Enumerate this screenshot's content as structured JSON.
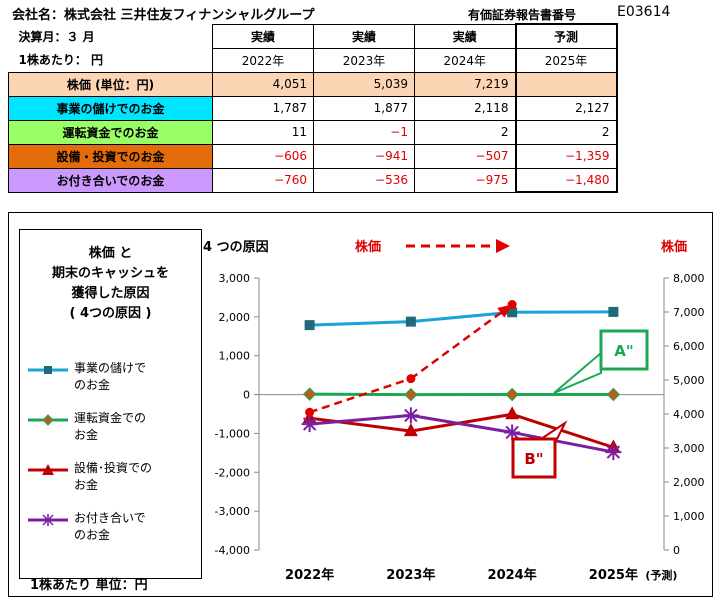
{
  "header": {
    "company_label": "会社名：株式会社 三井住友フィナンシャルグループ",
    "doc_code_label": "有価証券報告書番号",
    "doc_code": "E03614"
  },
  "table": {
    "fiscal_month_label": "決算月：３ 月",
    "per_share_label": "1株あたり： 円",
    "header_types": [
      "実績",
      "実績",
      "実績",
      "予測"
    ],
    "header_years": [
      "2022年",
      "2023年",
      "2024年",
      "2025年"
    ],
    "rows": [
      {
        "label": "株価 (単位：円)",
        "values": [
          "4,051",
          "5,039",
          "7,219",
          ""
        ]
      },
      {
        "label": "事業の儲けでのお金",
        "values": [
          "1,787",
          "1,877",
          "2,118",
          "2,127"
        ]
      },
      {
        "label": "運転資金でのお金",
        "values": [
          "11",
          "−1",
          "2",
          "2"
        ]
      },
      {
        "label": "設備・投資でのお金",
        "values": [
          "−606",
          "−941",
          "−507",
          "−1,359"
        ]
      },
      {
        "label": "お付き合いでのお金",
        "values": [
          "−760",
          "−536",
          "−975",
          "−1,480"
        ]
      }
    ]
  },
  "legend": {
    "title_lines": [
      "株価 と",
      "期末のキャッシュを",
      "獲得した原因",
      "( 4つの原因 )"
    ],
    "items": [
      {
        "line1": "事業の儲けで",
        "line2": "のお金"
      },
      {
        "line1": "運転資金での",
        "line2": "お金"
      },
      {
        "line1": "設備･投資での",
        "line2": "お金"
      },
      {
        "line1": "お付き合いで",
        "line2": "のお金"
      }
    ],
    "unit": "1株あたり 単位：円"
  },
  "chart_data": {
    "type": "line",
    "title": "4 つの原因",
    "price_label": "株価",
    "price_axis_label": "株価",
    "categories": [
      "2022年",
      "2023年",
      "2024年",
      "2025年"
    ],
    "forecast_suffix": "(予測)",
    "y_left": {
      "min": -4000,
      "max": 3000,
      "ticks": [
        "3,000",
        "2,000",
        "1,000",
        "0",
        "-1,000",
        "-2,000",
        "-3,000",
        "-4,000"
      ]
    },
    "y_right": {
      "min": 0,
      "max": 8000,
      "ticks": [
        "8,000",
        "7,000",
        "6,000",
        "5,000",
        "4,000",
        "3,000",
        "2,000",
        "1,000",
        "0"
      ]
    },
    "series": [
      {
        "name": "事業の儲けでのお金",
        "axis": "left",
        "color": "#1aa3d9",
        "marker": "square",
        "values": [
          1787,
          1877,
          2118,
          2127
        ]
      },
      {
        "name": "運転資金でのお金",
        "axis": "left",
        "color": "#1aa855",
        "marker": "diamond",
        "values": [
          11,
          -1,
          2,
          2
        ]
      },
      {
        "name": "設備･投資でのお金",
        "axis": "left",
        "color": "#c00000",
        "marker": "triangle",
        "values": [
          -606,
          -941,
          -507,
          -1359
        ]
      },
      {
        "name": "お付き合いでのお金",
        "axis": "left",
        "color": "#7a1fa2",
        "marker": "star",
        "values": [
          -760,
          -536,
          -975,
          -1480
        ]
      },
      {
        "name": "株価",
        "axis": "right",
        "color": "#e00000",
        "marker": "circle",
        "dashed": true,
        "values": [
          4051,
          5039,
          7219,
          null
        ]
      }
    ],
    "annotations": [
      {
        "text": "A\"",
        "color": "#1aa855"
      },
      {
        "text": "B\"",
        "color": "#c00000"
      }
    ],
    "grid": false
  }
}
